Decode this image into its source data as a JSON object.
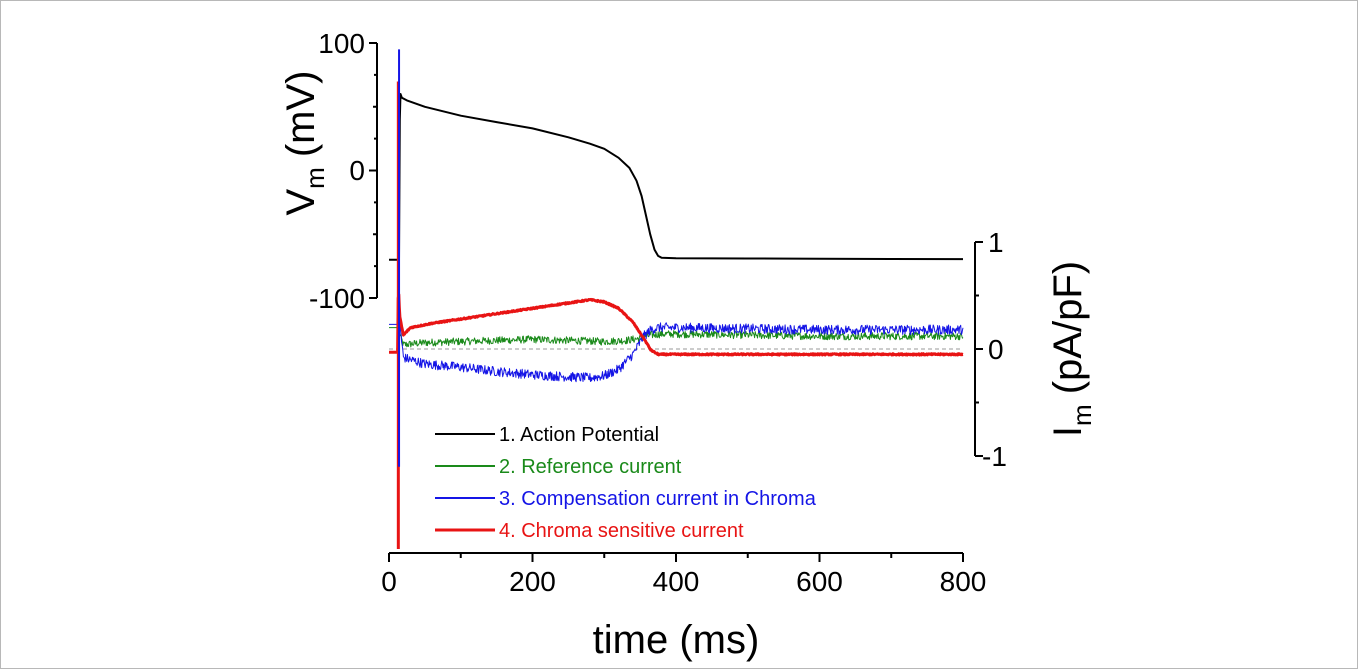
{
  "chart_data": {
    "type": "line",
    "xlabel": "time (ms)",
    "x_ticks": [
      "0",
      "200",
      "400",
      "600",
      "800"
    ],
    "xlim": [
      0,
      800
    ],
    "left_axis": {
      "label_main": "V",
      "label_sub": "m",
      "label_unit": "(mV)",
      "ticks": [
        "100",
        "0",
        "-100"
      ],
      "ylim": [
        -100,
        100
      ]
    },
    "right_axis": {
      "label_main": "I",
      "label_sub": "m",
      "label_unit": "(pA/pF)",
      "ticks": [
        "1",
        "0",
        "-1"
      ],
      "ylim": [
        -1,
        1
      ]
    },
    "series": [
      {
        "name": "1. Action Potential",
        "color": "#000000",
        "axis": "left",
        "x": [
          0,
          14,
          15,
          16,
          18,
          25,
          50,
          100,
          150,
          200,
          250,
          280,
          300,
          320,
          335,
          345,
          352,
          358,
          364,
          370,
          375,
          380,
          400,
          500,
          600,
          700,
          800
        ],
        "y": [
          -70,
          -70,
          40,
          60,
          57,
          55,
          50,
          43,
          38,
          33,
          26,
          21,
          17,
          10,
          2,
          -8,
          -20,
          -35,
          -50,
          -62,
          -67,
          -68.5,
          -68.8,
          -69,
          -69.2,
          -69.4,
          -69.5
        ]
      },
      {
        "name": "2. Reference current",
        "color": "#1a8a1a",
        "axis": "right",
        "x": [
          0,
          12,
          20,
          50,
          100,
          150,
          200,
          250,
          300,
          330,
          350,
          365,
          380,
          400,
          500,
          600,
          700,
          800
        ],
        "y": [
          0.2,
          0.2,
          0.04,
          0.06,
          0.07,
          0.08,
          0.09,
          0.08,
          0.07,
          0.08,
          0.1,
          0.13,
          0.14,
          0.14,
          0.13,
          0.12,
          0.12,
          0.12
        ]
      },
      {
        "name": "3. Compensation current in Chroma",
        "color": "#1515e6",
        "axis": "right",
        "x": [
          0,
          12,
          14,
          20,
          50,
          100,
          150,
          200,
          250,
          280,
          300,
          320,
          340,
          355,
          365,
          375,
          400,
          500,
          600,
          700,
          800
        ],
        "y": [
          0.23,
          0.23,
          0.3,
          -0.08,
          -0.14,
          -0.17,
          -0.21,
          -0.24,
          -0.26,
          -0.27,
          -0.25,
          -0.19,
          -0.05,
          0.12,
          0.18,
          0.2,
          0.2,
          0.19,
          0.18,
          0.18,
          0.18
        ]
      },
      {
        "name": "4. Chroma sensitive current",
        "color": "#e81414",
        "axis": "right",
        "x": [
          0,
          12,
          13,
          15,
          20,
          30,
          60,
          100,
          150,
          200,
          250,
          280,
          300,
          320,
          340,
          355,
          365,
          375,
          400,
          500,
          600,
          700,
          800
        ],
        "y": [
          -0.03,
          -0.03,
          0.6,
          0.3,
          0.13,
          0.2,
          0.24,
          0.28,
          0.33,
          0.38,
          0.43,
          0.46,
          0.44,
          0.38,
          0.25,
          0.1,
          -0.01,
          -0.05,
          -0.05,
          -0.05,
          -0.05,
          -0.05,
          -0.05
        ]
      }
    ],
    "spikes": [
      {
        "series": "4. Chroma sensitive current",
        "x": 13,
        "y_min": -2.9,
        "y_max": 2.5
      },
      {
        "series": "3. Compensation current in Chroma",
        "x": 14,
        "y_min": -1.1,
        "y_max": 2.8
      }
    ],
    "legend_placement": "bottom-left-inside",
    "grid": false,
    "zero_reference_line": "dashed",
    "trace_noise": "high-frequency noise on green and blue current traces"
  }
}
